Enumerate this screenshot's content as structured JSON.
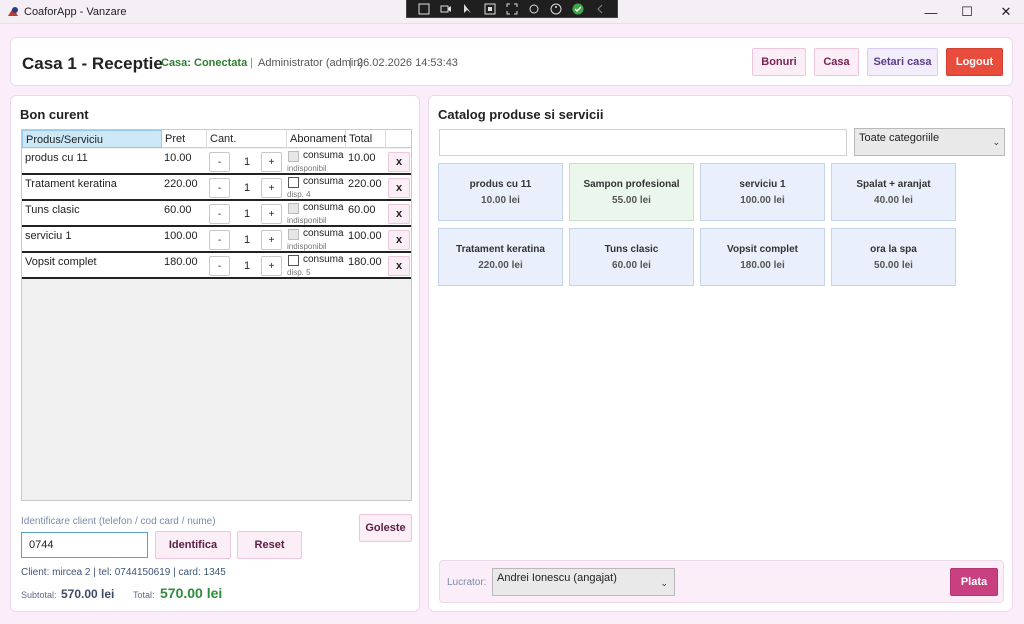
{
  "window": {
    "title": "CoaforApp - Vanzare",
    "minimize": "—",
    "maximize": "☐",
    "close": "✕"
  },
  "header": {
    "title": "Casa 1 - Receptie",
    "status": "Casa: Conectata",
    "sep": "|",
    "user": "Administrator (admin)",
    "datetime": "26.02.2026 14:53:43",
    "buttons": {
      "bonuri": "Bonuri",
      "casa": "Casa",
      "setari": "Setari casa",
      "logout": "Logout"
    }
  },
  "receipt": {
    "title": "Bon curent",
    "columns": {
      "product": "Produs/Serviciu",
      "price": "Pret",
      "qty": "Cant.",
      "subscription": "Abonament",
      "total": "Total"
    },
    "minus": "-",
    "plus": "+",
    "consume_label": "consuma",
    "remove": "x",
    "rows": [
      {
        "name": "produs cu 11",
        "price": "10.00",
        "qty": "1",
        "checkbox_disabled": true,
        "availability": "indisponibil",
        "total": "10.00"
      },
      {
        "name": "Tratament keratina",
        "price": "220.00",
        "qty": "1",
        "checkbox_disabled": false,
        "availability": "disp. 4",
        "total": "220.00"
      },
      {
        "name": "Tuns clasic",
        "price": "60.00",
        "qty": "1",
        "checkbox_disabled": true,
        "availability": "indisponibil",
        "total": "60.00"
      },
      {
        "name": "serviciu 1",
        "price": "100.00",
        "qty": "1",
        "checkbox_disabled": true,
        "availability": "indisponibil",
        "total": "100.00"
      },
      {
        "name": "Vopsit complet",
        "price": "180.00",
        "qty": "1",
        "checkbox_disabled": false,
        "availability": "disp. 5",
        "total": "180.00"
      }
    ],
    "client_id_label": "Identificare client (telefon / cod card / nume)",
    "client_id_value": "0744",
    "identify_button": "Identifica",
    "reset_button": "Reset",
    "clear_button": "Goleste",
    "client_info": "Client: mircea 2 | tel: 0744150619 | card: 1345",
    "subtotal_label": "Subtotal:",
    "subtotal_value": "570.00 lei",
    "total_label": "Total:",
    "total_value": "570.00 lei"
  },
  "catalog": {
    "title": "Catalog produse si servicii",
    "search_value": "",
    "category": "Toate categoriile",
    "items": [
      {
        "name": "produs cu 11",
        "price": "10.00 lei",
        "highlight": false
      },
      {
        "name": "Sampon profesional",
        "price": "55.00 lei",
        "highlight": true
      },
      {
        "name": "serviciu 1",
        "price": "100.00 lei",
        "highlight": false
      },
      {
        "name": "Spalat + aranjat",
        "price": "40.00 lei",
        "highlight": false
      },
      {
        "name": "Tratament keratina",
        "price": "220.00 lei",
        "highlight": false
      },
      {
        "name": "Tuns clasic",
        "price": "60.00 lei",
        "highlight": false
      },
      {
        "name": "Vopsit complet",
        "price": "180.00 lei",
        "highlight": false
      },
      {
        "name": "ora la spa",
        "price": "50.00 lei",
        "highlight": false
      }
    ],
    "worker_label": "Lucrator:",
    "worker_value": "Andrei Ionescu (angajat)",
    "pay_button": "Plata"
  },
  "colors": {
    "accent": "#c8407f",
    "logout": "#e74c3c",
    "status_ok": "#2e7d32",
    "total": "#2e8b3a"
  },
  "icons": {
    "app": "app-logo-icon",
    "minimize": "minimize-icon",
    "maximize": "maximize-icon",
    "close": "close-icon",
    "dropdown": "chevron-down-icon"
  }
}
